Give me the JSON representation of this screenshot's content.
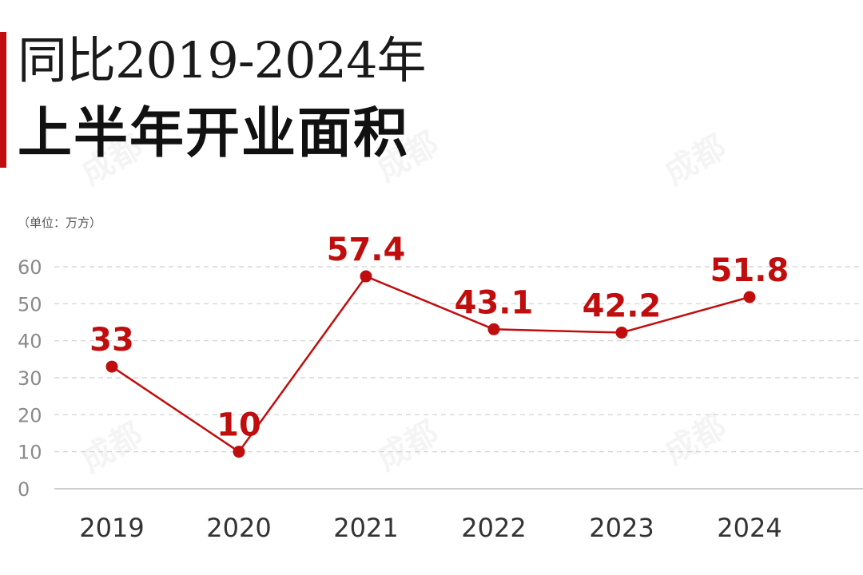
{
  "header": {
    "title_line1": "同比2019-2024年",
    "title_line2": "上半年开业面积",
    "accent_color": "#c00d0d"
  },
  "unit_label": "（单位：万方）",
  "watermark": "成都",
  "chart_data": {
    "type": "line",
    "title": "同比2019-2024年上半年开业面积",
    "xlabel": "",
    "ylabel": "（单位：万方）",
    "categories": [
      "2019",
      "2020",
      "2021",
      "2022",
      "2023",
      "2024"
    ],
    "values": [
      33,
      10,
      57.4,
      43.1,
      42.2,
      51.8
    ],
    "value_labels": [
      "33",
      "10",
      "57.4",
      "43.1",
      "42.2",
      "51.8"
    ],
    "yticks": [
      "0",
      "10",
      "20",
      "30",
      "40",
      "50",
      "60"
    ],
    "ylim": [
      0,
      60
    ],
    "grid": true,
    "grid_style": "dashed",
    "line_color": "#c00d0d"
  }
}
